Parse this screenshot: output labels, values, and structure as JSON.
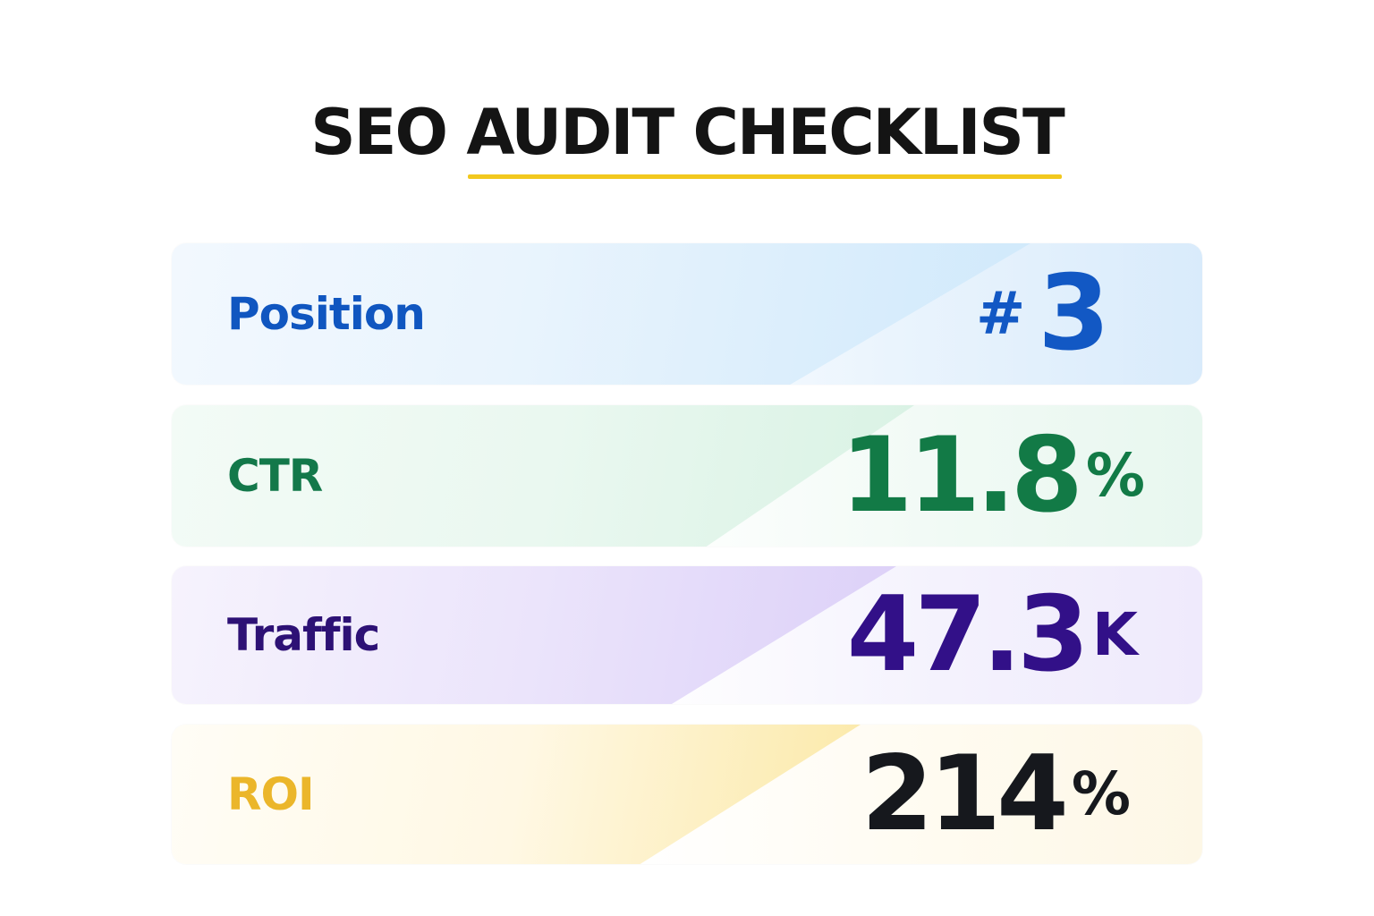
{
  "title": {
    "part1": "SEO ",
    "part2": "AUDIT CHECKLIST"
  },
  "colors": {
    "title_text": "#141414",
    "title_underline": "#f2c81e",
    "position": "#1258c4",
    "ctr": "#127a46",
    "traffic": "#321088",
    "roi_label": "#ebb62a",
    "roi_value": "#16181d"
  },
  "metrics": [
    {
      "label": "Position",
      "prefix": "#",
      "value": "3",
      "suffix": ""
    },
    {
      "label": "CTR",
      "prefix": "",
      "value": "11.8",
      "suffix": "%"
    },
    {
      "label": "Traffic",
      "prefix": "",
      "value": "47.3",
      "suffix": "K"
    },
    {
      "label": "ROI",
      "prefix": "",
      "value": "214",
      "suffix": "%"
    }
  ]
}
